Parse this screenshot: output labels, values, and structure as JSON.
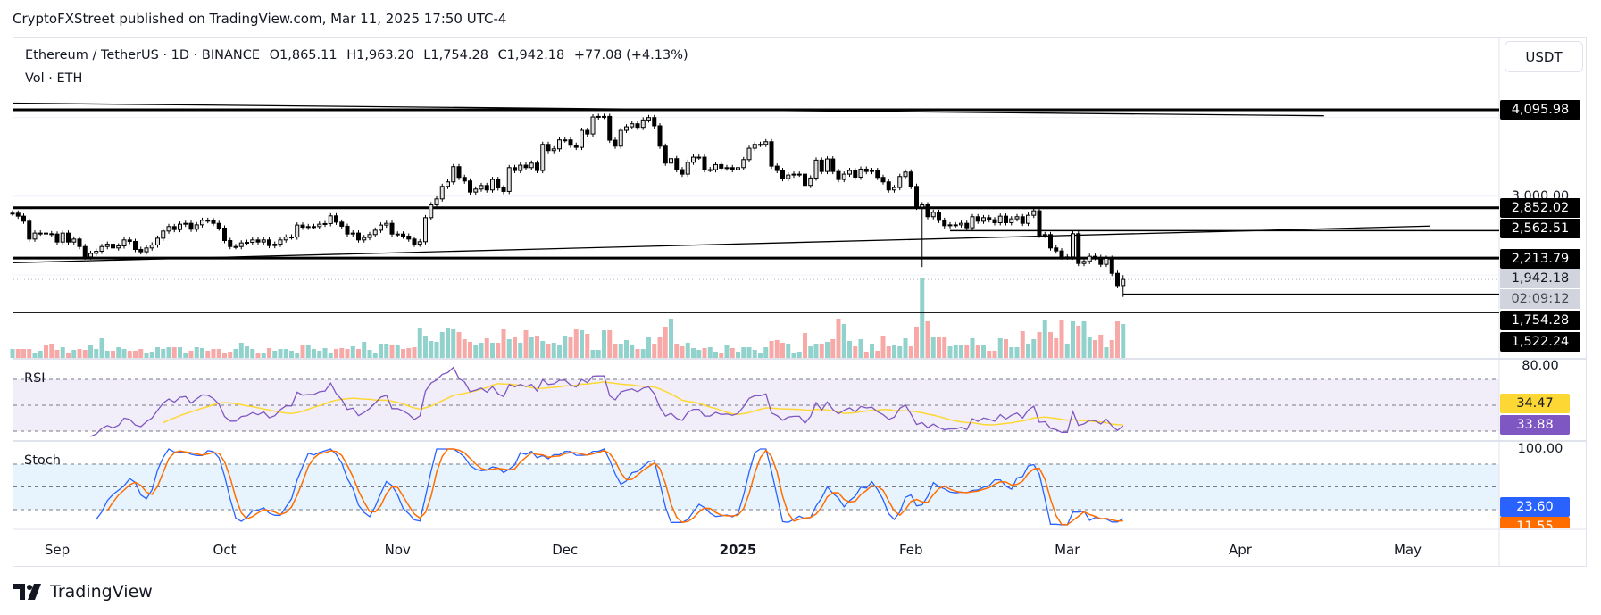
{
  "header": {
    "published": "CryptoFXStreet published on TradingView.com, Mar 11, 2025 17:50 UTC-4"
  },
  "legend": {
    "symbol": "Ethereum / TetherUS · 1D · BINANCE",
    "open": "O1,865.11",
    "high": "H1,963.20",
    "low": "L1,754.28",
    "close": "C1,942.18",
    "change": "+77.08 (+4.13%)",
    "volume": "Vol · ETH"
  },
  "currency_button": "USDT",
  "price_axis_labels": [
    {
      "text": "4,095.98",
      "style": "black"
    },
    {
      "text": "3,000.00",
      "style": "plain"
    },
    {
      "text": "2,852.02",
      "style": "black"
    },
    {
      "text": "2,562.51",
      "style": "black"
    },
    {
      "text": "2,213.79",
      "style": "black"
    },
    {
      "text": "1,942.18",
      "style": "last"
    },
    {
      "text": "02:09:12",
      "style": "countdown"
    },
    {
      "text": "1,754.28",
      "style": "black"
    },
    {
      "text": "1,522.24",
      "style": "black"
    }
  ],
  "rsi": {
    "title": "RSI",
    "axis_top": "80.00",
    "ma_value": "34.47",
    "rsi_value": "33.88",
    "levels": [
      70,
      50,
      30
    ]
  },
  "stoch": {
    "title": "Stoch",
    "axis_top": "100.00",
    "k_value": "23.60",
    "d_value": "11.55",
    "levels": [
      80,
      50,
      20
    ]
  },
  "time_axis": [
    {
      "label": "Sep",
      "date": "2024-09-01"
    },
    {
      "label": "Oct",
      "date": "2024-10-01"
    },
    {
      "label": "Nov",
      "date": "2024-11-01"
    },
    {
      "label": "Dec",
      "date": "2024-12-01"
    },
    {
      "label": "2025",
      "date": "2025-01-01",
      "bold": true
    },
    {
      "label": "Feb",
      "date": "2025-02-01"
    },
    {
      "label": "Mar",
      "date": "2025-03-01"
    },
    {
      "label": "Apr",
      "date": "2025-04-01"
    },
    {
      "label": "May",
      "date": "2025-05-01"
    }
  ],
  "branding": {
    "logo_text": "TradingView"
  },
  "colors": {
    "up_body": "#e0e0e0",
    "down_body": "#000000",
    "vol_up": "#92d2cc",
    "vol_down": "#f7a9a7",
    "rsi": "#7e57c2",
    "rsi_ma": "#fdd835",
    "stoch_k": "#2962ff",
    "stoch_d": "#ff6d00",
    "rsi_band": "#f1edf9",
    "stoch_band": "#e8f4fd",
    "last_price_bg": "#d1d4dc"
  },
  "chart_data": {
    "type": "candlestick",
    "interval": "1D",
    "last_date": "2025-03-11",
    "last_candle": {
      "open": 1865.11,
      "high": 1963.2,
      "low": 1754.28,
      "close": 1942.18
    },
    "notable_lows": [
      {
        "date": "2025-02-03",
        "low": 2134
      }
    ],
    "closes": [
      2784,
      2746,
      2682,
      2455,
      2531,
      2531,
      2523,
      2519,
      2417,
      2531,
      2417,
      2455,
      2360,
      2228,
      2273,
      2300,
      2360,
      2390,
      2342,
      2368,
      2444,
      2425,
      2323,
      2293,
      2342,
      2380,
      2466,
      2557,
      2614,
      2576,
      2644,
      2655,
      2580,
      2636,
      2693,
      2689,
      2655,
      2595,
      2436,
      2360,
      2360,
      2406,
      2413,
      2444,
      2417,
      2444,
      2372,
      2390,
      2444,
      2481,
      2481,
      2633,
      2606,
      2614,
      2614,
      2644,
      2652,
      2750,
      2670,
      2618,
      2519,
      2531,
      2444,
      2474,
      2512,
      2568,
      2633,
      2655,
      2519,
      2519,
      2493,
      2455,
      2390,
      2421,
      2727,
      2890,
      2965,
      3124,
      3181,
      3374,
      3238,
      3192,
      3052,
      3090,
      3135,
      3079,
      3211,
      3105,
      3060,
      3362,
      3325,
      3393,
      3362,
      3419,
      3325,
      3657,
      3578,
      3600,
      3714,
      3714,
      3646,
      3619,
      3835,
      3789,
      4005,
      4012,
      4012,
      3710,
      3634,
      3835,
      3880,
      3918,
      3873,
      3967,
      3997,
      3892,
      3634,
      3419,
      3476,
      3336,
      3279,
      3430,
      3495,
      3495,
      3336,
      3336,
      3400,
      3355,
      3362,
      3336,
      3362,
      3464,
      3608,
      3657,
      3657,
      3691,
      3381,
      3325,
      3222,
      3268,
      3279,
      3279,
      3136,
      3230,
      3457,
      3313,
      3472,
      3313,
      3211,
      3279,
      3325,
      3241,
      3343,
      3313,
      3325,
      3238,
      3181,
      3079,
      3109,
      3249,
      3306,
      3124,
      2860,
      2890,
      2739,
      2795,
      2693,
      2625,
      2636,
      2636,
      2655,
      2599,
      2739,
      2682,
      2727,
      2701,
      2663,
      2746,
      2663,
      2712,
      2739,
      2655,
      2757,
      2814,
      2504,
      2512,
      2342,
      2304,
      2228,
      2228,
      2523,
      2145,
      2172,
      2236,
      2221,
      2134,
      2210,
      2020,
      1865.11,
      1942.18
    ],
    "volume_relative": [
      10,
      10,
      10,
      10,
      6,
      8,
      15,
      16,
      9,
      12,
      5,
      9,
      10,
      9,
      14,
      10,
      22,
      8,
      8,
      12,
      10,
      8,
      8,
      10,
      5,
      7,
      12,
      10,
      12,
      12,
      12,
      6,
      8,
      12,
      11,
      8,
      10,
      10,
      6,
      7,
      10,
      17,
      13,
      10,
      5,
      5,
      11,
      8,
      10,
      10,
      8,
      5,
      15,
      15,
      10,
      8,
      11,
      5,
      10,
      11,
      10,
      13,
      10,
      18,
      9,
      6,
      16,
      16,
      15,
      15,
      10,
      11,
      12,
      33,
      25,
      19,
      18,
      29,
      33,
      32,
      29,
      21,
      18,
      15,
      17,
      22,
      17,
      17,
      32,
      21,
      24,
      17,
      31,
      24,
      25,
      19,
      16,
      17,
      15,
      25,
      24,
      32,
      31,
      27,
      9,
      9,
      31,
      31,
      16,
      16,
      20,
      14,
      10,
      10,
      23,
      16,
      24,
      35,
      44,
      16,
      13,
      17,
      11,
      9,
      11,
      12,
      7,
      6,
      15,
      11,
      7,
      12,
      12,
      9,
      6,
      12,
      19,
      20,
      17,
      16,
      6,
      7,
      28,
      13,
      16,
      16,
      18,
      21,
      44,
      38,
      19,
      13,
      21,
      7,
      16,
      8,
      25,
      13,
      14,
      13,
      22,
      13,
      35,
      90,
      41,
      23,
      24,
      23,
      13,
      14,
      14,
      14,
      22,
      15,
      14,
      8,
      8,
      22,
      21,
      12,
      12,
      30,
      16,
      21,
      29,
      43,
      29,
      22,
      42,
      16,
      41,
      36,
      41,
      23,
      20,
      26,
      12,
      20,
      41,
      38
    ],
    "horizontal_levels": [
      4095.98,
      2852.02,
      2213.79,
      1522.24
    ],
    "partial_levels": [
      2562.51,
      1754.28
    ],
    "last_price_line": 1942.18,
    "trendlines": [
      {
        "from": {
          "date": "2024-08-24",
          "price": 4180
        },
        "to": {
          "date": "2025-04-16",
          "price": 4020
        }
      },
      {
        "from": {
          "date": "2024-08-24",
          "price": 2155
        },
        "to": {
          "date": "2025-05-05",
          "price": 2620
        }
      }
    ],
    "indicators": [
      "RSI 14 with MA",
      "Stochastic"
    ]
  }
}
